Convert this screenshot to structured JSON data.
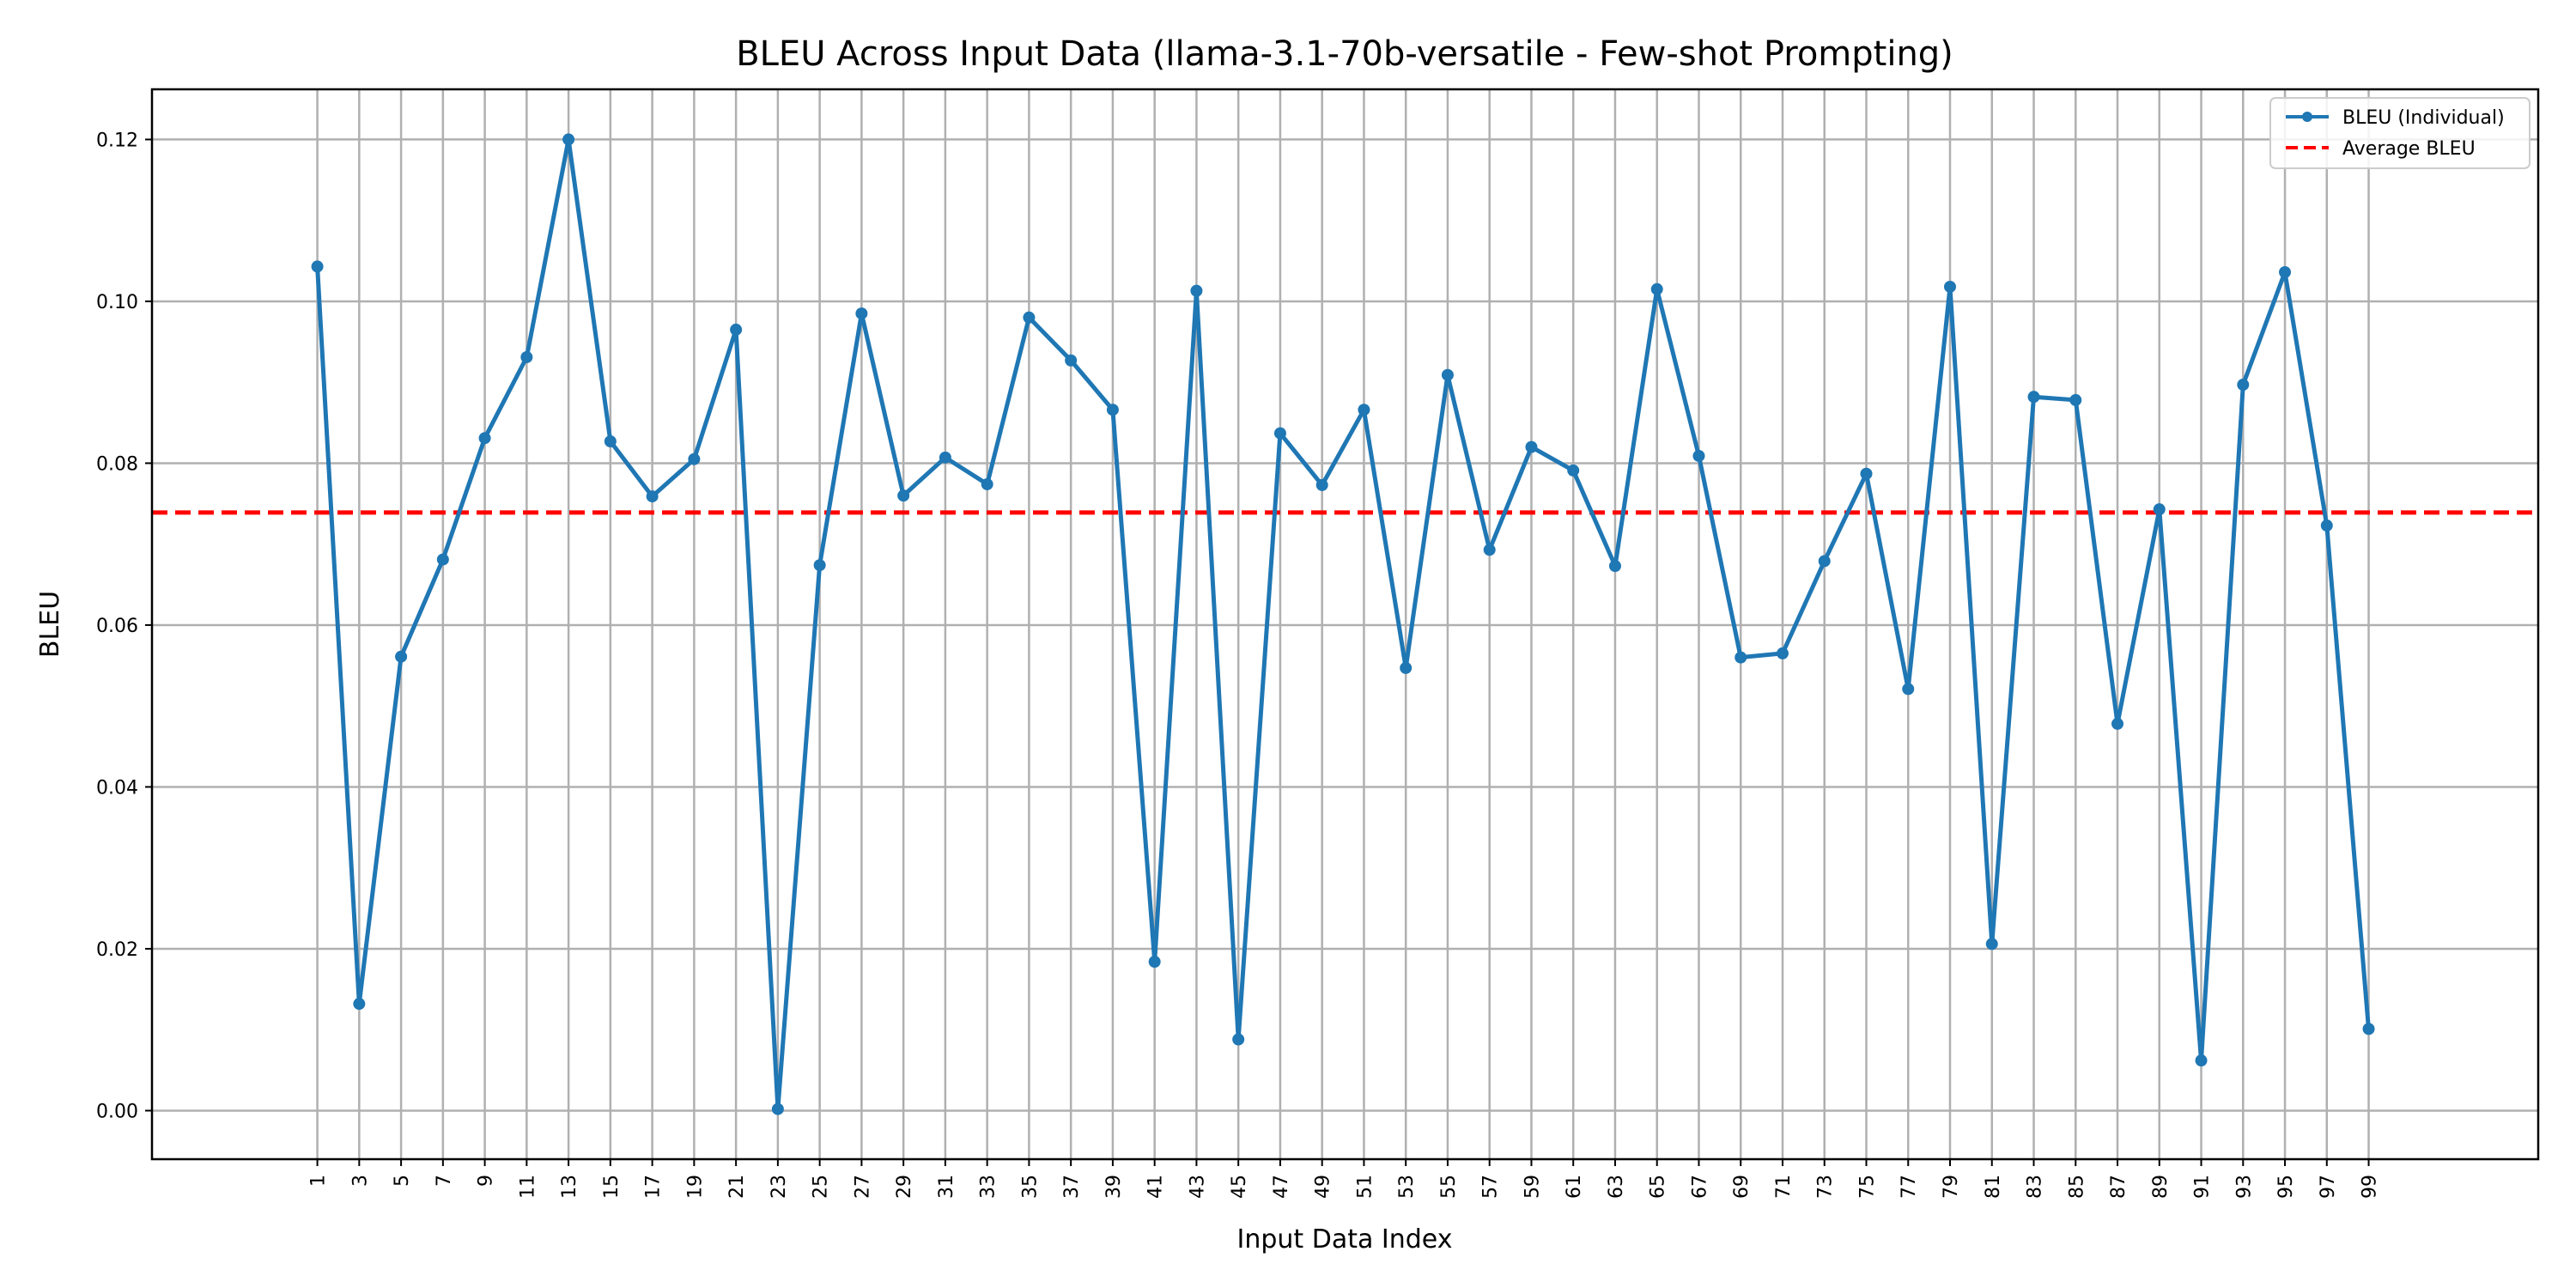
{
  "chart_data": {
    "type": "line",
    "title": "BLEU Across Input Data (llama-3.1-70b-versatile - Few-shot Prompting)",
    "xlabel": "Input Data Index",
    "ylabel": "BLEU",
    "x": [
      1,
      3,
      5,
      7,
      9,
      11,
      13,
      15,
      17,
      19,
      21,
      23,
      25,
      27,
      29,
      31,
      33,
      35,
      37,
      39,
      41,
      43,
      45,
      47,
      49,
      51,
      53,
      55,
      57,
      59,
      61,
      63,
      65,
      67,
      69,
      71,
      73,
      75,
      77,
      79,
      81,
      83,
      85,
      87,
      89,
      91,
      93,
      95,
      97,
      99
    ],
    "xticks": [
      "1",
      "3",
      "5",
      "7",
      "9",
      "11",
      "13",
      "15",
      "17",
      "19",
      "21",
      "23",
      "25",
      "27",
      "29",
      "31",
      "33",
      "35",
      "37",
      "39",
      "41",
      "43",
      "45",
      "47",
      "49",
      "51",
      "53",
      "55",
      "57",
      "59",
      "61",
      "63",
      "65",
      "67",
      "69",
      "71",
      "73",
      "75",
      "77",
      "79",
      "81",
      "83",
      "85",
      "87",
      "89",
      "91",
      "93",
      "95",
      "97",
      "99"
    ],
    "yticks": [
      "0.00",
      "0.02",
      "0.04",
      "0.06",
      "0.08",
      "0.10",
      "0.12"
    ],
    "ytick_values": [
      0,
      0.02,
      0.04,
      0.06,
      0.08,
      0.1,
      0.12
    ],
    "xlim": [
      -6.9,
      107.1
    ],
    "ylim": [
      -0.006,
      0.1262
    ],
    "grid": true,
    "legend_position": "top-right",
    "series": [
      {
        "name": "BLEU (Individual)",
        "color": "#1f77b4",
        "style": "solid-with-markers",
        "values": [
          0.1043,
          0.0132,
          0.0561,
          0.0681,
          0.0831,
          0.0931,
          0.12,
          0.0827,
          0.0759,
          0.0805,
          0.0965,
          0.0002,
          0.0674,
          0.0985,
          0.076,
          0.0807,
          0.0774,
          0.098,
          0.0927,
          0.0866,
          0.0184,
          0.1013,
          0.0088,
          0.0837,
          0.0773,
          0.0866,
          0.0547,
          0.0909,
          0.0693,
          0.082,
          0.0791,
          0.0673,
          0.1015,
          0.0809,
          0.056,
          0.0565,
          0.0679,
          0.0787,
          0.0521,
          0.1018,
          0.0206,
          0.0882,
          0.0878,
          0.0478,
          0.0743,
          0.0062,
          0.0897,
          0.1036,
          0.0723,
          0.0101
        ]
      },
      {
        "name": "Average BLEU",
        "color": "#ff0000",
        "style": "dashed",
        "value": 0.0739
      }
    ]
  }
}
